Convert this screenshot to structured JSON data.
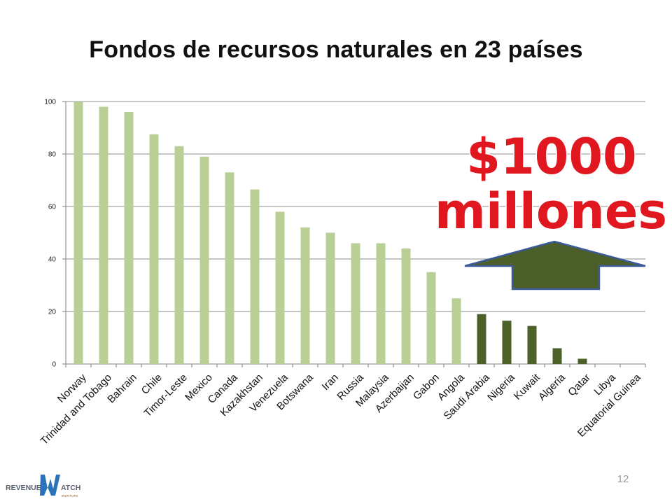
{
  "slide": {
    "title": "Fondos de recursos naturales en 23 países",
    "page_number": "12"
  },
  "callout": {
    "line1": "$1000",
    "line2": "millones",
    "text_color": "#e0171f",
    "arrow_color": "#4c5f2a",
    "arrow_outline": "#3a5a9a"
  },
  "logo": {
    "text_left": "REVENUE",
    "text_right": "ATCH",
    "sub": "INSTITUTE",
    "colors": [
      "#5a6170",
      "#2a73b8",
      "#8a5a2a"
    ]
  },
  "chart_data": {
    "type": "bar",
    "ylim": [
      0,
      100
    ],
    "yticks": [
      "0",
      "20",
      "40",
      "60",
      "80",
      "100"
    ],
    "grid": true,
    "categories": [
      "Norway",
      "Trinidad and Tobago",
      "Bahrain",
      "Chile",
      "Timor-Leste",
      "Mexico",
      "Canada",
      "Kazakhstan",
      "Venezuela",
      "Botswana",
      "Iran",
      "Russia",
      "Malaysia",
      "Azerbaijan",
      "Gabon",
      "Angola",
      "Saudi Arabia",
      "Nigeria",
      "Kuwait",
      "Algeria",
      "Qatar",
      "Libya",
      "Equatorial Guinea"
    ],
    "values": [
      100,
      98,
      96,
      87.5,
      83,
      79,
      73,
      66.5,
      58,
      52,
      50,
      46,
      46,
      44,
      35,
      25,
      19,
      16.5,
      14.5,
      6,
      2,
      0,
      0
    ],
    "light_color": "#b8cf96",
    "dark_color": "#4b6128",
    "dark_from_index": 16
  }
}
